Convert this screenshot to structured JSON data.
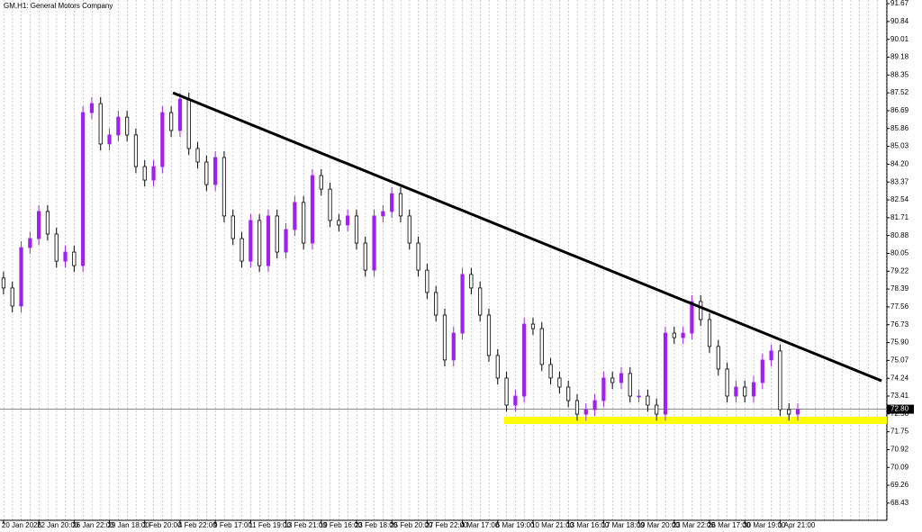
{
  "chart_data": {
    "type": "candlestick",
    "title": "GM,H1: General Motors Company",
    "up_color": "#a020f0",
    "down_color": "#000000",
    "x": [
      0,
      1,
      2,
      3,
      4,
      5,
      6,
      7,
      8,
      9,
      10,
      11,
      12,
      13,
      14,
      15,
      16,
      17,
      18,
      19,
      20,
      21,
      22,
      23,
      24,
      25,
      26,
      27,
      28,
      29,
      30,
      31,
      32,
      33,
      34,
      35,
      36,
      37,
      38,
      39,
      40,
      41,
      42,
      43,
      44,
      45,
      46,
      47,
      48,
      49,
      50,
      51,
      52,
      53,
      54,
      55,
      56,
      57,
      58,
      59,
      60,
      61,
      62,
      63,
      64,
      65,
      66,
      67,
      68,
      69,
      70,
      71,
      72,
      73,
      74,
      75,
      76,
      77,
      78,
      79,
      80,
      81,
      82,
      83,
      84,
      85,
      86,
      87,
      88,
      89,
      90
    ],
    "open": [
      78.9,
      78.44,
      77.6,
      80.32,
      80.74,
      82.0,
      80.95,
      79.69,
      80.11,
      79.48,
      86.6,
      87.02,
      85.14,
      85.56,
      86.39,
      85.56,
      84.09,
      83.46,
      84.09,
      86.6,
      85.77,
      87.23,
      84.93,
      84.3,
      83.25,
      84.51,
      81.79,
      80.74,
      79.69,
      81.58,
      79.48,
      81.79,
      80.11,
      81.16,
      82.42,
      80.53,
      83.67,
      83.04,
      81.58,
      81.37,
      81.79,
      80.53,
      79.27,
      81.79,
      82.0,
      82.83,
      81.79,
      80.53,
      79.27,
      78.23,
      77.18,
      75.09,
      76.34,
      79.07,
      78.44,
      77.18,
      75.3,
      74.25,
      72.99,
      73.41,
      76.76,
      76.55,
      74.88,
      74.25,
      73.83,
      73.2,
      72.57,
      72.78,
      73.2,
      74.25,
      74.04,
      74.46,
      73.41,
      73.41,
      72.99,
      72.57,
      76.34,
      76.13,
      76.34,
      77.81,
      76.97,
      75.72,
      74.67,
      73.41,
      73.83,
      73.41,
      74.04,
      75.09,
      75.51,
      72.78,
      72.57
    ],
    "high": [
      79.2,
      78.74,
      80.62,
      81.04,
      82.3,
      82.3,
      81.25,
      80.41,
      80.41,
      86.9,
      87.32,
      87.32,
      85.86,
      86.69,
      86.69,
      85.86,
      84.39,
      84.39,
      86.9,
      86.9,
      87.53,
      87.53,
      85.23,
      84.6,
      84.81,
      84.81,
      82.09,
      81.04,
      81.88,
      81.88,
      82.09,
      82.09,
      81.46,
      82.72,
      82.72,
      83.97,
      83.97,
      83.34,
      81.88,
      82.09,
      82.09,
      80.83,
      82.09,
      82.3,
      83.13,
      83.13,
      82.09,
      80.83,
      79.57,
      78.53,
      77.48,
      76.64,
      79.37,
      79.37,
      78.74,
      77.48,
      75.6,
      74.55,
      73.71,
      77.06,
      77.06,
      76.85,
      75.18,
      74.55,
      74.13,
      73.5,
      73.08,
      73.5,
      74.55,
      74.55,
      74.76,
      74.76,
      73.71,
      73.71,
      73.29,
      76.64,
      76.64,
      76.64,
      78.11,
      78.11,
      77.27,
      76.02,
      74.97,
      74.13,
      74.13,
      74.34,
      75.39,
      75.81,
      75.81,
      73.08,
      73.08
    ],
    "low": [
      78.14,
      77.3,
      77.3,
      80.02,
      80.44,
      80.65,
      79.39,
      79.39,
      79.18,
      79.18,
      86.3,
      84.84,
      84.84,
      85.26,
      85.26,
      83.79,
      83.16,
      83.16,
      83.79,
      85.47,
      85.47,
      84.63,
      84.0,
      82.95,
      82.95,
      81.49,
      80.44,
      79.39,
      79.39,
      79.18,
      79.18,
      79.81,
      79.81,
      80.86,
      80.23,
      80.23,
      82.74,
      81.28,
      81.07,
      81.07,
      80.23,
      78.97,
      78.97,
      81.49,
      81.7,
      81.49,
      80.23,
      78.97,
      77.93,
      76.88,
      74.79,
      74.79,
      76.04,
      78.14,
      76.88,
      75.0,
      73.95,
      72.69,
      72.69,
      73.11,
      76.25,
      74.58,
      73.95,
      73.53,
      72.9,
      72.27,
      72.27,
      72.48,
      72.9,
      73.74,
      73.74,
      73.11,
      73.11,
      72.69,
      72.27,
      72.27,
      75.83,
      75.83,
      76.04,
      76.67,
      75.42,
      74.37,
      73.11,
      73.11,
      73.11,
      73.11,
      73.74,
      74.79,
      72.48,
      72.27,
      72.27
    ],
    "close": [
      78.44,
      77.6,
      80.32,
      80.74,
      82.0,
      80.95,
      79.69,
      80.11,
      79.48,
      86.6,
      87.02,
      85.14,
      85.56,
      86.39,
      85.56,
      84.09,
      83.46,
      84.09,
      86.6,
      85.77,
      87.23,
      84.93,
      84.3,
      83.25,
      84.51,
      81.79,
      80.74,
      79.69,
      81.58,
      79.48,
      81.79,
      80.11,
      81.16,
      82.42,
      80.53,
      83.67,
      83.04,
      81.58,
      81.37,
      81.79,
      80.53,
      79.27,
      81.79,
      82.0,
      82.83,
      81.79,
      80.53,
      79.27,
      78.23,
      77.18,
      75.09,
      76.34,
      79.07,
      78.44,
      77.18,
      75.3,
      74.25,
      72.99,
      73.41,
      76.76,
      76.55,
      74.88,
      74.25,
      73.83,
      73.2,
      72.57,
      72.78,
      73.2,
      74.25,
      74.04,
      74.46,
      73.41,
      73.41,
      72.99,
      72.57,
      76.34,
      76.13,
      76.34,
      77.81,
      76.97,
      75.72,
      74.67,
      73.41,
      73.83,
      73.41,
      74.04,
      75.09,
      75.51,
      72.78,
      72.57,
      72.78
    ],
    "xlim": [
      -0.4,
      100.1
    ],
    "ylim": [
      67.63,
      91.84
    ],
    "xticks": [
      {
        "value": 0,
        "label": "20 Jan 2026"
      },
      {
        "value": 4,
        "label": "22 Jan 20:00"
      },
      {
        "value": 8,
        "label": "26 Jan 22:00"
      },
      {
        "value": 12,
        "label": "29 Jan 18:00"
      },
      {
        "value": 16,
        "label": "2 Feb 20:00"
      },
      {
        "value": 20,
        "label": "4 Feb 22:00"
      },
      {
        "value": 24,
        "label": "9 Feb 17:00"
      },
      {
        "value": 28,
        "label": "11 Feb 19:00"
      },
      {
        "value": 32,
        "label": "13 Feb 21:00"
      },
      {
        "value": 36,
        "label": "19 Feb 16:00"
      },
      {
        "value": 40,
        "label": "23 Feb 18:00"
      },
      {
        "value": 44,
        "label": "25 Feb 20:00"
      },
      {
        "value": 48,
        "label": "27 Feb 22:00"
      },
      {
        "value": 52,
        "label": "4 Mar 17:00"
      },
      {
        "value": 56,
        "label": "6 Mar 19:00"
      },
      {
        "value": 60,
        "label": "10 Mar 21:00"
      },
      {
        "value": 64,
        "label": "13 Mar 16:00"
      },
      {
        "value": 68,
        "label": "17 Mar 18:00"
      },
      {
        "value": 72,
        "label": "19 Mar 20:00"
      },
      {
        "value": 76,
        "label": "23 Mar 22:00"
      },
      {
        "value": 80,
        "label": "26 Mar 17:00"
      },
      {
        "value": 84,
        "label": "30 Mar 19:00"
      },
      {
        "value": 88,
        "label": "1 Apr 21:00"
      }
    ],
    "yticks": [
      91.67,
      90.84,
      90.01,
      89.18,
      88.35,
      87.52,
      86.69,
      85.86,
      85.03,
      {
        "value": 84.2,
        "label": "84.20"
      },
      83.37,
      82.54,
      81.71,
      80.88,
      80.05,
      79.22,
      78.39,
      77.56,
      76.73,
      {
        "value": 75.9,
        "label": "75.90"
      },
      75.07,
      74.24,
      73.41,
      72.58,
      71.75,
      70.92,
      70.09,
      69.26,
      68.43
    ],
    "current_price": {
      "value": 72.8,
      "label": "72.80"
    },
    "trendline": {
      "x": [
        19.2,
        99.5
      ],
      "y": [
        87.52,
        74.12
      ],
      "color": "#000000"
    },
    "support_zone": {
      "x": [
        56.7,
        100.1
      ],
      "y": [
        72.11,
        72.45
      ],
      "color": "#ffff00"
    }
  }
}
